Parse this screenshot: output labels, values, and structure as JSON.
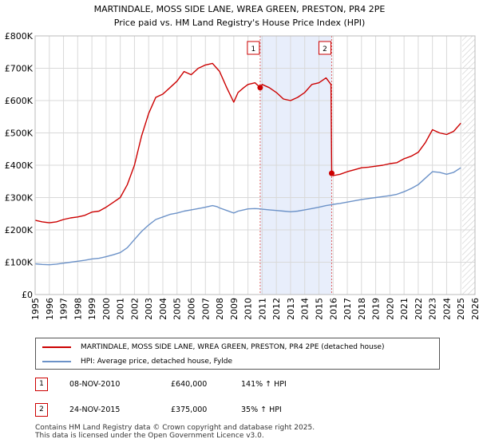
{
  "chart_data": {
    "type": "line",
    "title": "MARTINDALE, MOSS SIDE LANE, WREA GREEN, PRESTON, PR4 2PE",
    "subtitle": "Price paid vs. HM Land Registry's House Price Index (HPI)",
    "xlabel": "",
    "ylabel": "",
    "xlim": [
      1995,
      2026
    ],
    "ylim": [
      0,
      800000
    ],
    "y_ticks": [
      0,
      100000,
      200000,
      300000,
      400000,
      500000,
      600000,
      700000,
      800000
    ],
    "y_tick_labels": [
      "£0",
      "£100K",
      "£200K",
      "£300K",
      "£400K",
      "£500K",
      "£600K",
      "£700K",
      "£800K"
    ],
    "x_ticks": [
      1995,
      1996,
      1997,
      1998,
      1999,
      2000,
      2001,
      2002,
      2003,
      2004,
      2005,
      2006,
      2007,
      2008,
      2009,
      2010,
      2011,
      2012,
      2013,
      2014,
      2015,
      2016,
      2017,
      2018,
      2019,
      2020,
      2021,
      2022,
      2023,
      2024,
      2025,
      2026
    ],
    "x_tick_labels": [
      "1995",
      "1996",
      "1997",
      "1998",
      "1999",
      "2000",
      "2001",
      "2002",
      "2003",
      "2004",
      "2005",
      "2006",
      "2007",
      "2008",
      "2009",
      "2010",
      "2011",
      "2012",
      "2013",
      "2014",
      "2015",
      "2016",
      "2017",
      "2018",
      "2019",
      "2020",
      "2021",
      "2022",
      "2023",
      "2024",
      "2025",
      "2026"
    ],
    "grid": true,
    "legend_position": "below",
    "shaded_span": [
      2010.86,
      2015.9
    ],
    "future_hatch_from": 2025.1,
    "series": [
      {
        "name": "MARTINDALE, MOSS SIDE LANE, WREA GREEN, PRESTON, PR4 2PE (detached house)",
        "color": "#cc0000",
        "x": [
          1995.0,
          1995.5,
          1996.0,
          1996.5,
          1997.0,
          1997.5,
          1998.0,
          1998.5,
          1999.0,
          1999.5,
          2000.0,
          2000.5,
          2001.0,
          2001.5,
          2002.0,
          2002.5,
          2003.0,
          2003.5,
          2004.0,
          2004.5,
          2005.0,
          2005.5,
          2006.0,
          2006.5,
          2007.0,
          2007.5,
          2007.8,
          2008.0,
          2008.5,
          2009.0,
          2009.3,
          2009.7,
          2010.0,
          2010.5,
          2010.86,
          2011.0,
          2011.5,
          2012.0,
          2012.5,
          2013.0,
          2013.5,
          2014.0,
          2014.5,
          2015.0,
          2015.5,
          2015.85,
          2015.9,
          2016.0,
          2016.5,
          2017.0,
          2017.5,
          2018.0,
          2018.5,
          2019.0,
          2019.5,
          2020.0,
          2020.5,
          2021.0,
          2021.5,
          2022.0,
          2022.5,
          2023.0,
          2023.5,
          2024.0,
          2024.5,
          2025.0
        ],
        "values": [
          230000,
          225000,
          222000,
          225000,
          232000,
          237000,
          240000,
          245000,
          255000,
          258000,
          270000,
          285000,
          300000,
          340000,
          400000,
          490000,
          560000,
          610000,
          620000,
          640000,
          660000,
          690000,
          680000,
          700000,
          710000,
          715000,
          700000,
          690000,
          640000,
          595000,
          625000,
          640000,
          650000,
          655000,
          640000,
          650000,
          640000,
          625000,
          605000,
          600000,
          610000,
          625000,
          650000,
          655000,
          670000,
          650000,
          375000,
          368000,
          372000,
          380000,
          386000,
          392000,
          394000,
          397000,
          400000,
          405000,
          408000,
          420000,
          428000,
          440000,
          470000,
          510000,
          500000,
          495000,
          505000,
          530000
        ]
      },
      {
        "name": "HPI: Average price, detached house, Fylde",
        "color": "#6c92c8",
        "x": [
          1995.0,
          1995.5,
          1996.0,
          1996.5,
          1997.0,
          1997.5,
          1998.0,
          1998.5,
          1999.0,
          1999.5,
          2000.0,
          2000.5,
          2001.0,
          2001.5,
          2002.0,
          2002.5,
          2003.0,
          2003.5,
          2004.0,
          2004.5,
          2005.0,
          2005.5,
          2006.0,
          2006.5,
          2007.0,
          2007.5,
          2007.8,
          2008.0,
          2008.5,
          2009.0,
          2009.3,
          2009.7,
          2010.0,
          2010.5,
          2010.86,
          2011.0,
          2011.5,
          2012.0,
          2012.5,
          2013.0,
          2013.5,
          2014.0,
          2014.5,
          2015.0,
          2015.5,
          2015.9,
          2016.0,
          2016.5,
          2017.0,
          2017.5,
          2018.0,
          2018.5,
          2019.0,
          2019.5,
          2020.0,
          2020.5,
          2021.0,
          2021.5,
          2022.0,
          2022.5,
          2023.0,
          2023.5,
          2024.0,
          2024.5,
          2025.0
        ],
        "values": [
          95000,
          93000,
          92000,
          94000,
          97000,
          100000,
          103000,
          106000,
          110000,
          112000,
          117000,
          123000,
          130000,
          145000,
          170000,
          195000,
          215000,
          232000,
          240000,
          248000,
          252000,
          258000,
          262000,
          266000,
          270000,
          275000,
          272000,
          268000,
          260000,
          252000,
          258000,
          262000,
          265000,
          266000,
          265000,
          264000,
          262000,
          260000,
          258000,
          256000,
          258000,
          262000,
          266000,
          270000,
          275000,
          278000,
          279000,
          282000,
          286000,
          290000,
          294000,
          297000,
          300000,
          303000,
          306000,
          310000,
          318000,
          328000,
          340000,
          360000,
          380000,
          378000,
          372000,
          378000,
          392000
        ]
      }
    ],
    "markers": [
      {
        "label": "1",
        "x": 2010.86,
        "value": 640000
      },
      {
        "label": "2",
        "x": 2015.9,
        "value": 375000
      }
    ]
  },
  "legend": {
    "items": [
      {
        "label": "MARTINDALE, MOSS SIDE LANE, WREA GREEN, PRESTON, PR4 2PE (detached house)",
        "color": "#cc0000"
      },
      {
        "label": "HPI: Average price, detached house, Fylde",
        "color": "#6c92c8"
      }
    ]
  },
  "transactions": [
    {
      "num": "1",
      "date": "08-NOV-2010",
      "price": "£640,000",
      "hpi": "141% ↑ HPI"
    },
    {
      "num": "2",
      "date": "24-NOV-2015",
      "price": "£375,000",
      "hpi": "35% ↑ HPI"
    }
  ],
  "footer": {
    "line1": "Contains HM Land Registry data © Crown copyright and database right 2025.",
    "line2": "This data is licensed under the Open Government Licence v3.0."
  }
}
